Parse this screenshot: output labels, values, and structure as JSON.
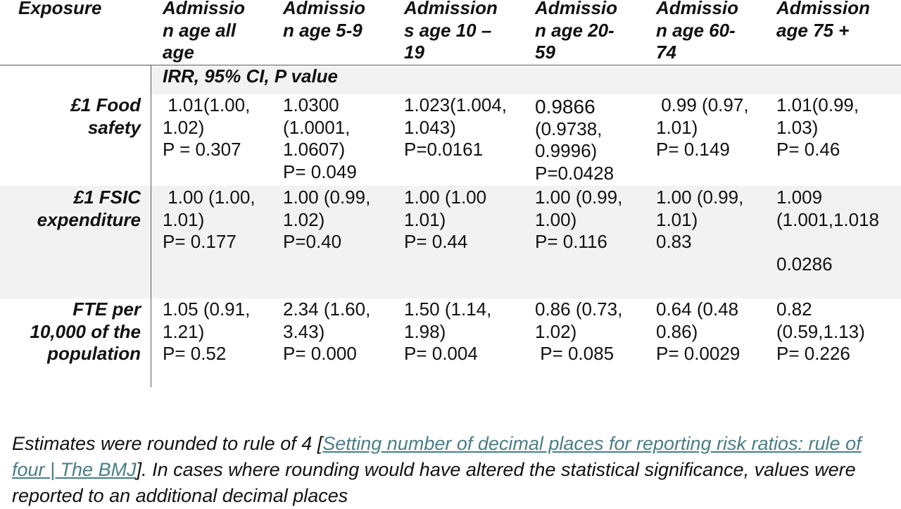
{
  "table": {
    "columns": [
      [
        "Exposure"
      ],
      [
        "Admissio",
        "n age all",
        "age"
      ],
      [
        "Admissio",
        "n age 5-9"
      ],
      [
        "Admission",
        "s age 10 –",
        "19"
      ],
      [
        "Admissio",
        "n age 20-",
        "59"
      ],
      [
        "Admissio",
        "n age 60-",
        "74"
      ],
      [
        "Admission",
        "age 75 +"
      ]
    ],
    "subheader": "IRR, 95% CI, P value",
    "rows": [
      {
        "label": [
          "£1 Food",
          "safety"
        ],
        "cells": [
          [
            " 1.01(1.00,",
            "1.02)",
            "P = 0.307"
          ],
          [
            "1.0300",
            "(1.0001,",
            "1.0607)",
            "P= 0.049"
          ],
          [
            "1.023(1.004,",
            "1.043)",
            "P=0.0161"
          ],
          [
            "0.9866",
            "(0.9738,",
            "0.9996)",
            "P=0.0428"
          ],
          [
            " 0.99 (0.97,",
            "1.01)",
            "P= 0.149"
          ],
          [
            "1.01(0.99,",
            "1.03)",
            "P= 0.46"
          ]
        ]
      },
      {
        "label": [
          "£1 FSIC",
          "expenditure"
        ],
        "cells": [
          [
            " 1.00 (1.00,",
            "1.01)",
            "P= 0.177"
          ],
          [
            "1.00 (0.99,",
            "1.02)",
            "P=0.40"
          ],
          [
            "1.00 (1.00",
            "1.01)",
            "P= 0.44"
          ],
          [
            "1.00 (0.99,",
            "1.00)",
            "P= 0.116"
          ],
          [
            "1.00 (0.99,",
            "1.01)",
            "0.83"
          ],
          [
            "1.009",
            "(1.001,1.018",
            "",
            "0.0286"
          ]
        ]
      },
      {
        "label": [
          "FTE per",
          "10,000 of the",
          "population"
        ],
        "cells": [
          [
            "1.05 (0.91,",
            "1.21)",
            "P= 0.52"
          ],
          [
            "2.34 (1.60,",
            "3.43)",
            "P= 0.000"
          ],
          [
            "1.50 (1.14,",
            "1.98)",
            "P= 0.004"
          ],
          [
            "0.86 (0.73,",
            "1.02)",
            " P= 0.085"
          ],
          [
            "0.64 (0.48",
            "0.86)",
            "P= 0.0029"
          ],
          [
            "0.82",
            "(0.59,1.13)",
            "P= 0.226"
          ]
        ]
      }
    ]
  },
  "footnote": {
    "before": "Estimates were rounded to rule of 4 [",
    "link": "Setting number of decimal places for reporting risk ratios: rule of four | The BMJ",
    "after": "]. In cases where rounding would have altered the statistical significance, values were reported to an additional decimal places"
  }
}
